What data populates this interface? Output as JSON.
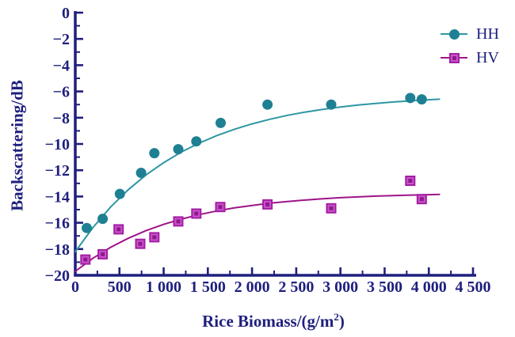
{
  "chart_data": {
    "type": "scatter",
    "title": "",
    "xlabel": "Rice Biomass/(g/m²)",
    "xlabel_parts": [
      "Rice Biomass/(g/m",
      "2",
      ")"
    ],
    "ylabel": "Backscattering/dB",
    "xlim": [
      0,
      4500
    ],
    "ylim": [
      -20,
      0
    ],
    "grid": false,
    "legend_position": "upper right",
    "axis_color": "#1f1f7e",
    "tick_label_color": "#1f1f7e",
    "x_ticks": [
      {
        "v": 0,
        "label": "0"
      },
      {
        "v": 500,
        "label": "500"
      },
      {
        "v": 1000,
        "label": "1 000"
      },
      {
        "v": 1500,
        "label": "1 500"
      },
      {
        "v": 2000,
        "label": "2 000"
      },
      {
        "v": 2500,
        "label": "2 500"
      },
      {
        "v": 3000,
        "label": "3 000"
      },
      {
        "v": 3500,
        "label": "3 500"
      },
      {
        "v": 4000,
        "label": "4 000"
      },
      {
        "v": 4500,
        "label": "4 500"
      }
    ],
    "x_minor_ticks": [
      250,
      750,
      1250,
      1750,
      2250,
      2750,
      3250,
      3750,
      4250
    ],
    "y_ticks": [
      {
        "v": 0,
        "label": "0"
      },
      {
        "v": -2,
        "label": "−2"
      },
      {
        "v": -4,
        "label": "−4"
      },
      {
        "v": -6,
        "label": "−6"
      },
      {
        "v": -8,
        "label": "−8"
      },
      {
        "v": -10,
        "label": "−10"
      },
      {
        "v": -12,
        "label": "−12"
      },
      {
        "v": -14,
        "label": "−14"
      },
      {
        "v": -16,
        "label": "−16"
      },
      {
        "v": -18,
        "label": "−18"
      },
      {
        "v": -20,
        "label": "−20"
      }
    ],
    "y_minor_ticks": [
      -1,
      -3,
      -5,
      -7,
      -9,
      -11,
      -13,
      -15,
      -17,
      -19
    ],
    "series": [
      {
        "id": "hh",
        "name": "HH",
        "marker": "circle",
        "color": "#1f8093",
        "line_color": "#2e96a3",
        "points": [
          [
            130,
            -16.4
          ],
          [
            310,
            -15.7
          ],
          [
            505,
            -13.8
          ],
          [
            745,
            -12.2
          ],
          [
            895,
            -10.7
          ],
          [
            1165,
            -10.4
          ],
          [
            1370,
            -9.8
          ],
          [
            1645,
            -8.4
          ],
          [
            2175,
            -7.0
          ],
          [
            2895,
            -7.0
          ],
          [
            3790,
            -6.5
          ],
          [
            3920,
            -6.6
          ]
        ],
        "curve": [
          [
            0,
            -18.2
          ],
          [
            200,
            -16.36
          ],
          [
            400,
            -14.8
          ],
          [
            600,
            -13.48
          ],
          [
            800,
            -12.36
          ],
          [
            1000,
            -11.42
          ],
          [
            1200,
            -10.61
          ],
          [
            1400,
            -9.94
          ],
          [
            1600,
            -9.36
          ],
          [
            1800,
            -8.88
          ],
          [
            2000,
            -8.47
          ],
          [
            2200,
            -8.12
          ],
          [
            2400,
            -7.82
          ],
          [
            2600,
            -7.57
          ],
          [
            2800,
            -7.36
          ],
          [
            3000,
            -7.18
          ],
          [
            3200,
            -7.03
          ],
          [
            3400,
            -6.91
          ],
          [
            3600,
            -6.8
          ],
          [
            3800,
            -6.71
          ],
          [
            4000,
            -6.63
          ],
          [
            4120,
            -6.59
          ]
        ]
      },
      {
        "id": "hv",
        "name": "HV",
        "marker": "square",
        "border_color": "#a21ea2",
        "fill_color": "#ca52ca",
        "center_color": "#8c1a8c",
        "line_color": "#9e1489",
        "points": [
          [
            115,
            -18.8
          ],
          [
            310,
            -18.4
          ],
          [
            490,
            -16.5
          ],
          [
            735,
            -17.6
          ],
          [
            895,
            -17.1
          ],
          [
            1165,
            -15.9
          ],
          [
            1370,
            -15.3
          ],
          [
            1640,
            -14.8
          ],
          [
            2175,
            -14.6
          ],
          [
            2895,
            -14.9
          ],
          [
            3790,
            -12.8
          ],
          [
            3920,
            -14.2
          ]
        ],
        "curve": [
          [
            0,
            -19.7
          ],
          [
            200,
            -18.7
          ],
          [
            400,
            -17.87
          ],
          [
            600,
            -17.18
          ],
          [
            800,
            -16.6
          ],
          [
            1000,
            -16.12
          ],
          [
            1200,
            -15.72
          ],
          [
            1400,
            -15.38
          ],
          [
            1600,
            -15.1
          ],
          [
            1800,
            -14.87
          ],
          [
            2000,
            -14.68
          ],
          [
            2200,
            -14.51
          ],
          [
            2400,
            -14.38
          ],
          [
            2600,
            -14.27
          ],
          [
            2800,
            -14.17
          ],
          [
            3000,
            -14.09
          ],
          [
            3200,
            -14.03
          ],
          [
            3400,
            -13.97
          ],
          [
            3600,
            -13.93
          ],
          [
            3800,
            -13.89
          ],
          [
            4000,
            -13.86
          ],
          [
            4120,
            -13.84
          ]
        ]
      }
    ]
  }
}
